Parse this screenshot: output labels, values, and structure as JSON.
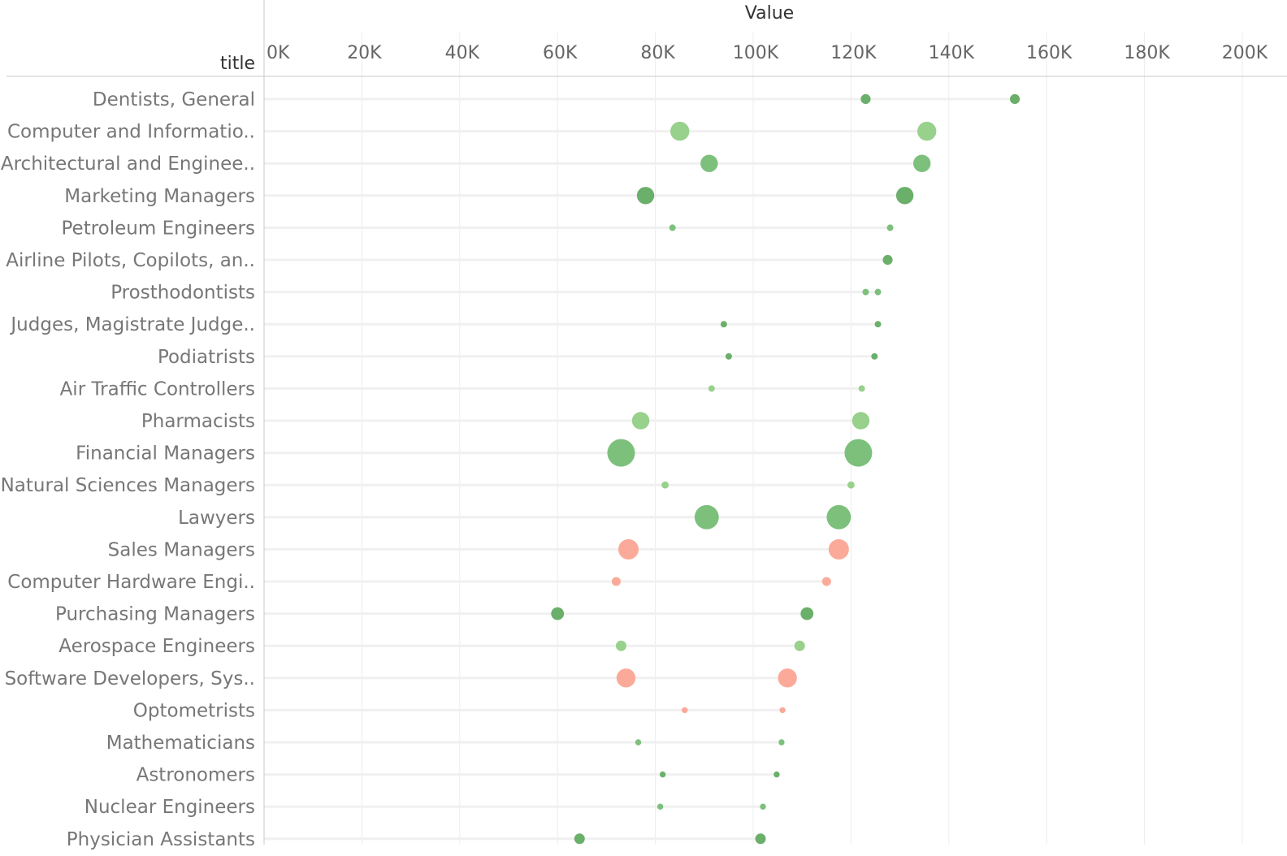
{
  "chart_data": {
    "type": "scatter",
    "subtype": "dumbbell",
    "title": "",
    "xlabel": "Value",
    "ylabel": "title",
    "xlim": [
      0,
      200000
    ],
    "x_ticks": [
      0,
      20000,
      40000,
      60000,
      80000,
      100000,
      120000,
      140000,
      160000,
      180000,
      200000
    ],
    "x_tick_labels": [
      "0K",
      "20K",
      "40K",
      "60K",
      "80K",
      "100K",
      "120K",
      "140K",
      "160K",
      "180K",
      "200K"
    ],
    "gridlines": "vertical",
    "legend": "none",
    "colors": {
      "dark_green": "#6aaf6a",
      "mid_green": "#7cc07c",
      "light_green": "#97d18c",
      "salmon": "#fbaa9a",
      "connector": "#f0f0f0"
    },
    "rows": [
      {
        "title": "Dentists, General",
        "low": 123000,
        "high": 153500,
        "size": 0.22,
        "color": "dark_green"
      },
      {
        "title": "Computer and Informatio..",
        "low": 85000,
        "high": 135500,
        "size": 0.62,
        "color": "light_green"
      },
      {
        "title": "Architectural and Enginee..",
        "low": 91000,
        "high": 134500,
        "size": 0.55,
        "color": "mid_green"
      },
      {
        "title": "Marketing Managers",
        "low": 78000,
        "high": 131000,
        "size": 0.55,
        "color": "dark_green"
      },
      {
        "title": "Petroleum Engineers",
        "low": 83500,
        "high": 128000,
        "size": 0.07,
        "color": "mid_green"
      },
      {
        "title": "Airline Pilots, Copilots, an..",
        "low": null,
        "high": 127500,
        "size": 0.22,
        "color": "dark_green"
      },
      {
        "title": "Prosthodontists",
        "low": 123000,
        "high": 125500,
        "size": 0.07,
        "color": "mid_green"
      },
      {
        "title": "Judges, Magistrate Judge..",
        "low": 94000,
        "high": 125500,
        "size": 0.07,
        "color": "dark_green"
      },
      {
        "title": "Podiatrists",
        "low": 95000,
        "high": 124800,
        "size": 0.07,
        "color": "dark_green"
      },
      {
        "title": "Air Traffic Controllers",
        "low": 91500,
        "high": 122200,
        "size": 0.07,
        "color": "light_green"
      },
      {
        "title": "Pharmacists",
        "low": 77000,
        "high": 122000,
        "size": 0.55,
        "color": "light_green"
      },
      {
        "title": "Financial Managers",
        "low": 73000,
        "high": 121500,
        "size": 1.0,
        "color": "mid_green"
      },
      {
        "title": "Natural Sciences Managers",
        "low": 82000,
        "high": 120000,
        "size": 0.1,
        "color": "light_green"
      },
      {
        "title": "Lawyers",
        "low": 90500,
        "high": 117500,
        "size": 0.85,
        "color": "mid_green"
      },
      {
        "title": "Sales Managers",
        "low": 74500,
        "high": 117500,
        "size": 0.68,
        "color": "salmon"
      },
      {
        "title": "Computer Hardware Engi..",
        "low": 72000,
        "high": 115000,
        "size": 0.18,
        "color": "salmon"
      },
      {
        "title": "Purchasing Managers",
        "low": 60000,
        "high": 111000,
        "size": 0.35,
        "color": "dark_green"
      },
      {
        "title": "Aerospace Engineers",
        "low": 73000,
        "high": 109500,
        "size": 0.25,
        "color": "light_green"
      },
      {
        "title": "Software Developers, Sys..",
        "low": 74000,
        "high": 107000,
        "size": 0.62,
        "color": "salmon"
      },
      {
        "title": "Optometrists",
        "low": 86000,
        "high": 106000,
        "size": 0.05,
        "color": "salmon"
      },
      {
        "title": "Mathematicians",
        "low": 76500,
        "high": 105800,
        "size": 0.05,
        "color": "mid_green"
      },
      {
        "title": "Astronomers",
        "low": 81500,
        "high": 104800,
        "size": 0.05,
        "color": "dark_green"
      },
      {
        "title": "Nuclear Engineers",
        "low": 81000,
        "high": 102000,
        "size": 0.05,
        "color": "mid_green"
      },
      {
        "title": "Physician Assistants",
        "low": 64500,
        "high": 101500,
        "size": 0.25,
        "color": "dark_green"
      }
    ]
  }
}
